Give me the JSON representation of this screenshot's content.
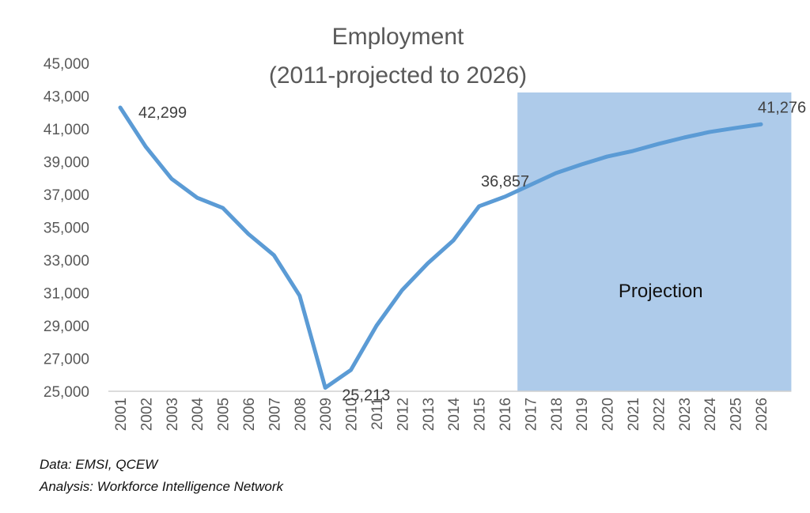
{
  "chart_data": {
    "type": "line",
    "title": [
      "Employment",
      "(2011-projected to 2026)"
    ],
    "xlabel": "",
    "ylabel": "",
    "categories": [
      "2001",
      "2002",
      "2003",
      "2004",
      "2005",
      "2006",
      "2007",
      "2008",
      "2009",
      "2010",
      "2011",
      "2012",
      "2013",
      "2014",
      "2015",
      "2016",
      "2017",
      "2018",
      "2019",
      "2020",
      "2021",
      "2022",
      "2023",
      "2024",
      "2025",
      "2026"
    ],
    "series": [
      {
        "name": "Employment",
        "color": "#5b9bd5",
        "values": [
          42299,
          39900,
          37960,
          36800,
          36180,
          34590,
          33290,
          30830,
          25213,
          26300,
          29000,
          31170,
          32800,
          34200,
          36280,
          36857,
          37580,
          38300,
          38830,
          39310,
          39650,
          40080,
          40470,
          40810,
          41050,
          41276
        ]
      }
    ],
    "ylim": [
      25000,
      45000
    ],
    "yticks": [
      25000,
      27000,
      29000,
      31000,
      33000,
      35000,
      37000,
      39000,
      41000,
      43000,
      45000
    ],
    "ytick_labels": [
      "25,000",
      "27,000",
      "29,000",
      "31,000",
      "33,000",
      "35,000",
      "37,000",
      "39,000",
      "41,000",
      "43,000",
      "45,000"
    ],
    "grid": false,
    "data_labels": [
      {
        "category": "2001",
        "text": "42,299"
      },
      {
        "category": "2009",
        "text": "25,213"
      },
      {
        "category": "2016",
        "text": "36,857"
      },
      {
        "category": "2026",
        "text": "41,276"
      }
    ],
    "shaded_region": {
      "from": "2016.5",
      "to": "2027",
      "label": "Projection",
      "color": "#aecbea"
    }
  },
  "footer": {
    "source": "Data: EMSI, QCEW",
    "analysis": "Analysis: Workforce Intelligence Network"
  }
}
